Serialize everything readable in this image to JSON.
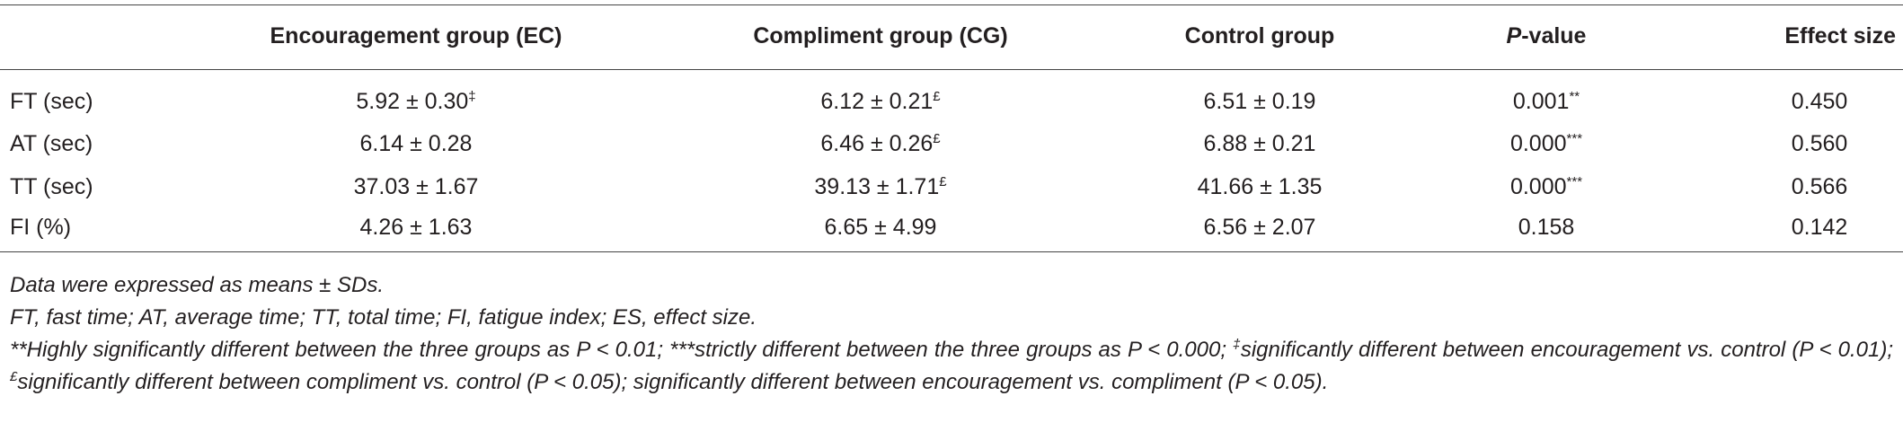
{
  "table": {
    "columns": [
      "Encouragement group (EC)",
      "Compliment group (CG)",
      "Control group",
      {
        "italic": "P",
        "text": "-value"
      },
      "Effect size"
    ],
    "rows": [
      {
        "label": "FT (sec)",
        "cells": [
          {
            "text": "5.92 ± 0.30",
            "sup": "‡"
          },
          {
            "text": "6.12 ± 0.21",
            "sup": "£"
          },
          "6.51 ± 0.19",
          {
            "text": "0.001",
            "sup": "**"
          },
          "0.450"
        ]
      },
      {
        "label": "AT (sec)",
        "cells": [
          "6.14 ± 0.28",
          {
            "text": "6.46 ± 0.26",
            "sup": "£"
          },
          "6.88 ± 0.21",
          {
            "text": "0.000",
            "sup": "***"
          },
          "0.560"
        ]
      },
      {
        "label": "TT (sec)",
        "cells": [
          "37.03 ± 1.67",
          {
            "text": "39.13 ± 1.71",
            "sup": "£"
          },
          "41.66 ± 1.35",
          {
            "text": "0.000",
            "sup": "***"
          },
          "0.566"
        ]
      },
      {
        "label": "FI (%)",
        "cells": [
          "4.26 ± 1.63",
          "6.65 ± 4.99",
          "6.56 ± 2.07",
          "0.158",
          "0.142"
        ]
      }
    ]
  },
  "notes": [
    "Data were expressed as means ± SDs.",
    "FT, fast time; AT, average time; TT, total time; FI, fatigue index; ES, effect size.",
    [
      {
        "text": "**Highly significantly different between the three groups as P < 0.01; ***strictly different between the three groups as P < 0.000; "
      },
      {
        "sup": "‡"
      },
      {
        "text": "significantly different between encouragement vs. control (P < 0.01); "
      },
      {
        "sup": "£"
      },
      {
        "text": "significantly different between compliment vs. control (P < 0.05); significantly different between encouragement vs. compliment (P < 0.05)."
      }
    ]
  ]
}
